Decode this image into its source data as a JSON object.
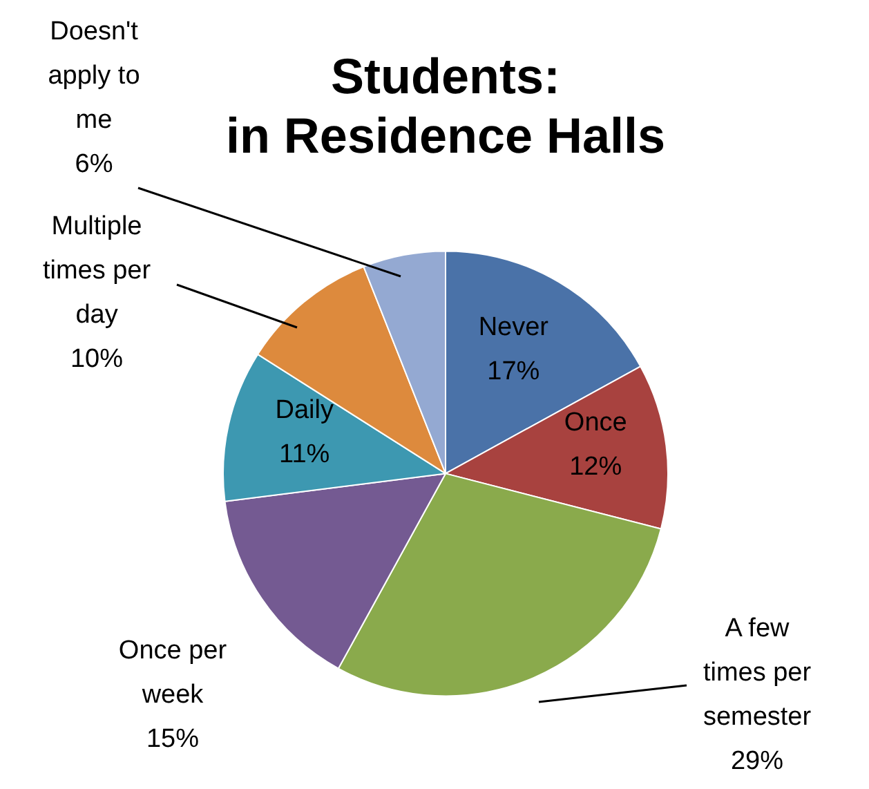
{
  "chart_data": {
    "type": "pie",
    "title": "Students:\nin Residence Halls",
    "categories": [
      "Never",
      "Once",
      "A few times per semester",
      "Once per week",
      "Daily",
      "Multiple times per day",
      "Doesn't apply to me"
    ],
    "values": [
      17,
      12,
      29,
      15,
      11,
      10,
      6
    ],
    "value_labels": [
      "17%",
      "12%",
      "29%",
      "15%",
      "11%",
      "10%",
      "6%"
    ],
    "colors": [
      "#4a72a8",
      "#a8423f",
      "#8aaa4c",
      "#745a92",
      "#3d98b1",
      "#dd8a3d",
      "#94a9d2"
    ],
    "legend": false
  }
}
